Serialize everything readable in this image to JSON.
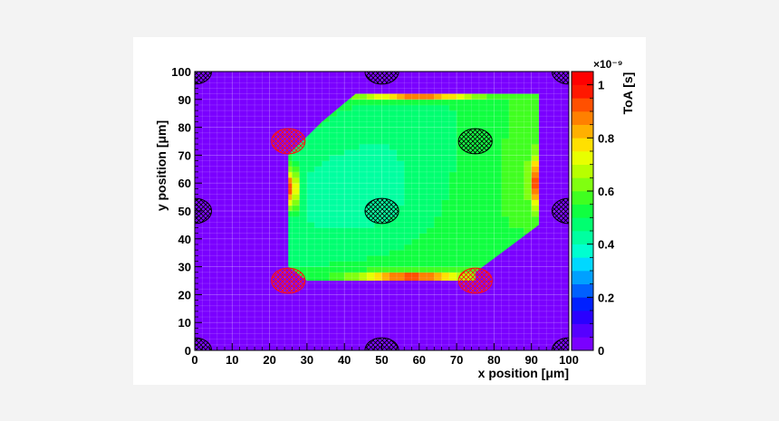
{
  "chart_data": {
    "type": "heatmap",
    "title": "",
    "xlabel": "x position [μm]",
    "ylabel": "y position [μm]",
    "xlim": [
      0,
      100
    ],
    "ylim": [
      0,
      100
    ],
    "x_ticks": [
      "0",
      "10",
      "20",
      "30",
      "40",
      "50",
      "60",
      "70",
      "80",
      "90",
      "100"
    ],
    "y_ticks": [
      "0",
      "10",
      "20",
      "30",
      "40",
      "50",
      "60",
      "70",
      "80",
      "90",
      "100"
    ],
    "grid": true,
    "background_value_color": "#7a00ff",
    "colorbar": {
      "label": "ToA [s]",
      "exponent": "×10⁻⁹",
      "range": [
        0,
        1.05
      ],
      "ticks": [
        "0",
        "0.2",
        "0.4",
        "0.6",
        "0.8",
        "1"
      ],
      "tick_values": [
        0,
        0.2,
        0.4,
        0.6,
        0.8,
        1.0
      ],
      "colors": [
        "#7a00ff",
        "#5500ff",
        "#2a00ff",
        "#0020ff",
        "#0060ff",
        "#00a0ff",
        "#00d8ff",
        "#00ffd0",
        "#00ffa0",
        "#00ff70",
        "#10ff40",
        "#40ff20",
        "#80ff10",
        "#b8ff00",
        "#e8ff00",
        "#ffe000",
        "#ffb000",
        "#ff8000",
        "#ff5000",
        "#ff1800",
        "#ff0000"
      ]
    },
    "active_region_polygon": [
      [
        25,
        70
      ],
      [
        25,
        30
      ],
      [
        30,
        25
      ],
      [
        75,
        25
      ],
      [
        75,
        28
      ],
      [
        82,
        35
      ],
      [
        92,
        45
      ],
      [
        92,
        92
      ],
      [
        43,
        92
      ],
      [
        34,
        82
      ]
    ],
    "toa_model": {
      "center_value": 0.43,
      "top_edge_peak": 0.98,
      "bottom_edge_peak": 0.97,
      "left_edge_peak": 1.0,
      "right_edge_peak": 0.95
    },
    "collection_electrodes": [
      {
        "x": 0,
        "y": 0
      },
      {
        "x": 50,
        "y": 0
      },
      {
        "x": 100,
        "y": 0
      },
      {
        "x": 0,
        "y": 50
      },
      {
        "x": 50,
        "y": 50
      },
      {
        "x": 100,
        "y": 50
      },
      {
        "x": 0,
        "y": 100
      },
      {
        "x": 50,
        "y": 100
      },
      {
        "x": 100,
        "y": 100
      },
      {
        "x": 75,
        "y": 75
      }
    ],
    "highlighted_electrodes": [
      {
        "x": 25,
        "y": 75
      },
      {
        "x": 25,
        "y": 25
      },
      {
        "x": 75,
        "y": 25
      }
    ],
    "electrode_radius_um": 4.5,
    "colors": {
      "electrode_hatch": "#000000",
      "highlight_hatch": "#ff1010"
    }
  }
}
